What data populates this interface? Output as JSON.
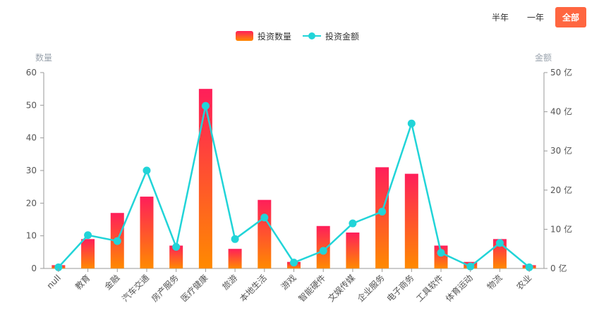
{
  "period_tabs": [
    {
      "label": "半年",
      "active": false
    },
    {
      "label": "一年",
      "active": false
    },
    {
      "label": "全部",
      "active": true
    }
  ],
  "colors": {
    "bar_top": "#ff1e5a",
    "bar_bottom": "#ff8a00",
    "line": "#21d4d8",
    "active_tab": "#ff6640"
  },
  "chart_data": {
    "type": "bar",
    "categories": [
      "null",
      "教育",
      "金融",
      "汽车交通",
      "房产服务",
      "医疗健康",
      "旅游",
      "本地生活",
      "游戏",
      "智能硬件",
      "文娱传媒",
      "企业服务",
      "电子商务",
      "工具软件",
      "体育运动",
      "物流",
      "农业"
    ],
    "series": [
      {
        "name": "投资数量",
        "type": "bar",
        "axis": "left",
        "values": [
          1,
          9,
          17,
          22,
          7,
          55,
          6,
          21,
          2,
          13,
          11,
          31,
          29,
          7,
          2,
          9,
          1
        ]
      },
      {
        "name": "投资金额",
        "type": "line",
        "axis": "right",
        "values": [
          0.3,
          8.5,
          7,
          25,
          5.5,
          41.5,
          7.5,
          13,
          1.5,
          4.5,
          11.5,
          14.5,
          37,
          4,
          0.5,
          6.5,
          0.3
        ]
      }
    ],
    "ylabel_left": "数量",
    "ylabel_right": "金额",
    "y_left": {
      "min": 0,
      "max": 60,
      "ticks": [
        0,
        10,
        20,
        30,
        40,
        50,
        60
      ]
    },
    "y_right": {
      "min": 0,
      "max": 50,
      "ticks": [
        0,
        10,
        20,
        30,
        40,
        50
      ],
      "unit": "亿"
    },
    "legend": "top-center",
    "grid": false
  }
}
